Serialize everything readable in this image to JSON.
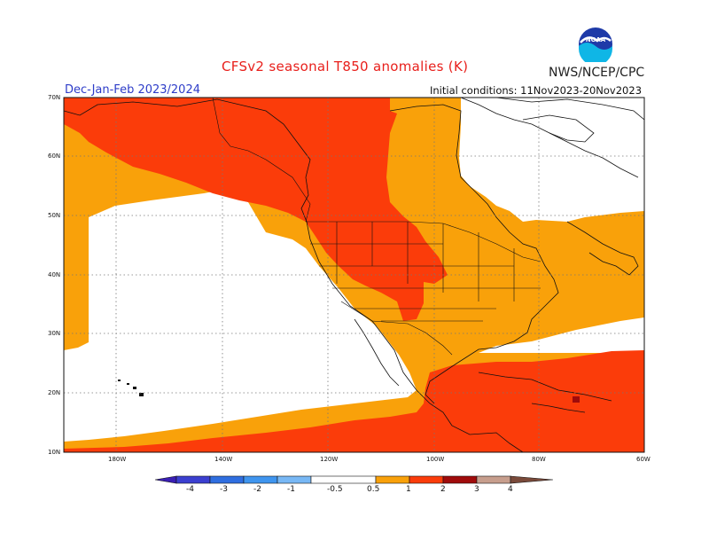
{
  "title": "CFSv2 seasonal T850 anomalies (K)",
  "organization": "NWS/NCEP/CPC",
  "logo_text": "NOAA",
  "season": "Dec-Jan-Feb 2023/2024",
  "initial_conditions": "Initial conditions: 11Nov2023-20Nov2023",
  "latitude_labels": [
    "70N",
    "60N",
    "50N",
    "40N",
    "30N",
    "20N",
    "10N"
  ],
  "longitude_labels": [
    "180W",
    "140W",
    "120W",
    "100W",
    "80W",
    "60W"
  ],
  "colorbar": {
    "labels": [
      "-4",
      "-3",
      "-2",
      "-1",
      "-0.5",
      "0.5",
      "1",
      "2",
      "3",
      "4"
    ],
    "colors": {
      "lt_neg4": "#3a1fb4",
      "neg4_neg3": "#3b3fd0",
      "neg3_neg2": "#2f6ee0",
      "neg2_neg1": "#3f95ef",
      "neg1_neg05": "#78b8f5",
      "neutral": "#ffffff",
      "p05_1": "#f9a10a",
      "p1_2": "#fb3c0a",
      "p2_3": "#a00b0b",
      "p3_4": "#c79e8d",
      "gt4": "#7a4a3a"
    }
  },
  "map_colors": {
    "anomaly_05_1": "#f9a10a",
    "anomaly_1_2": "#fb3c0a",
    "anomaly_2_3": "#a00b0b",
    "neutral": "#ffffff"
  }
}
